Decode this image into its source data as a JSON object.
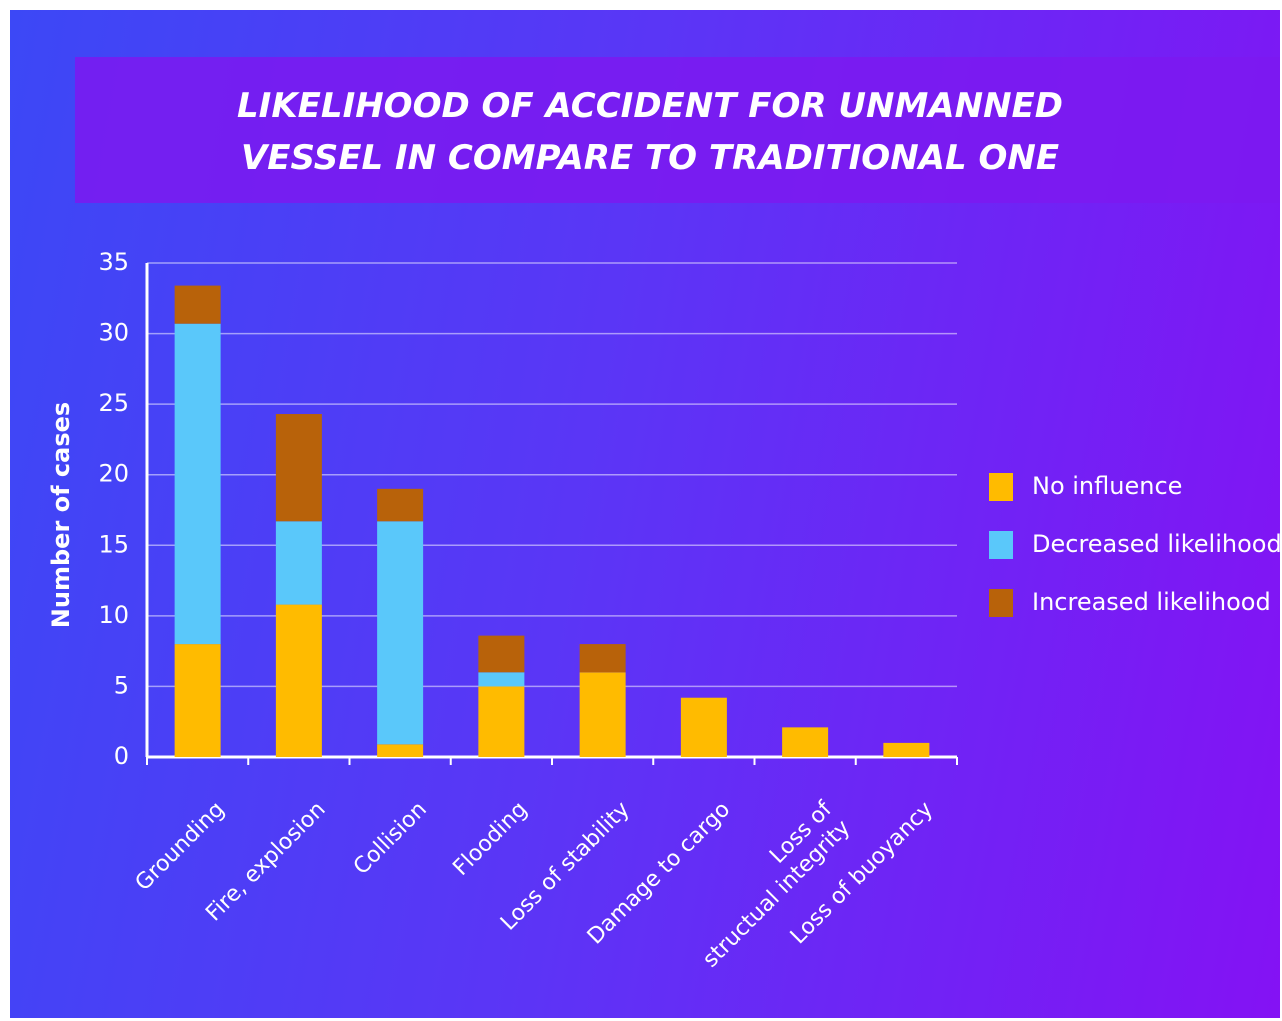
{
  "chart_data": {
    "type": "stacked_bar",
    "title": "LIKELIHOOD OF ACCIDENT FOR UNMANNED VESSEL IN COMPARE TO TRADITIONAL ONE",
    "y_label": "Number of cases",
    "categories": [
      "Grounding",
      "Fire, explosion",
      "Collision",
      "Flooding",
      "Loss of stability",
      "Damage to cargo",
      "Loss of\nstructual integrity",
      "Loss of buoyancy"
    ],
    "series": [
      {
        "name": "No influence",
        "color": "#ffbb00",
        "values": [
          8,
          10.8,
          0.9,
          5,
          6,
          4.2,
          2.1,
          1
        ]
      },
      {
        "name": "Decreased likelihood",
        "color": "#5ac8fa",
        "values": [
          22.7,
          5.9,
          15.8,
          1,
          0,
          0,
          0,
          0
        ]
      },
      {
        "name": "Increased likelihood",
        "color": "#b8620a",
        "values": [
          2.7,
          7.6,
          2.3,
          2.6,
          2,
          0,
          0,
          0
        ]
      }
    ],
    "ylim": [
      0,
      35
    ],
    "yticks": [
      0,
      5,
      10,
      15,
      20,
      25,
      30,
      35
    ],
    "grid": true,
    "legend": "right"
  }
}
